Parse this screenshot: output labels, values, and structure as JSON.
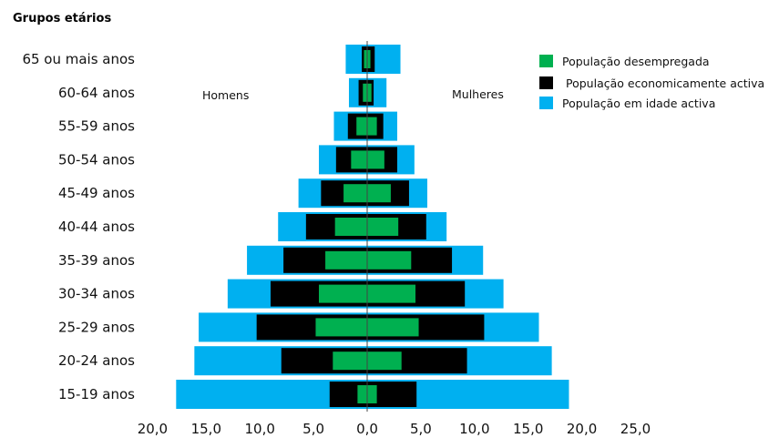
{
  "chart_data": {
    "type": "bar",
    "orientation": "horizontal",
    "subtype": "population-pyramid",
    "y_axis_title": "Grupos etários",
    "left_label": "Homens",
    "right_label": "Mulheres",
    "categories": [
      "65 ou mais anos",
      "60-64 anos",
      "55-59 anos",
      "50-54 anos",
      "45-49 anos",
      "40-44 anos",
      "35-39 anos",
      "30-34 anos",
      "25-29 anos",
      "20-24 anos",
      "15-19 anos"
    ],
    "xlim": [
      -20,
      25
    ],
    "x_ticks": [
      -20,
      -15,
      -10,
      -5,
      0,
      5,
      10,
      15,
      20,
      25
    ],
    "x_tick_labels": [
      "20,0",
      "15,0",
      "10,0",
      "5,0",
      "0,0",
      "5,0",
      "10,0",
      "15,0",
      "20,0",
      "25,0"
    ],
    "grid": false,
    "legend_position": "top-right",
    "series": [
      {
        "name": "População em idade activa",
        "color": "#00b0f0",
        "men": [
          2.0,
          1.7,
          3.1,
          4.5,
          6.4,
          8.3,
          11.2,
          13.0,
          15.7,
          16.1,
          17.8
        ],
        "women": [
          3.1,
          1.8,
          2.8,
          4.4,
          5.6,
          7.4,
          10.8,
          12.7,
          16.0,
          17.2,
          18.8
        ]
      },
      {
        "name": "População economicamente activa",
        "color": "#000000",
        "men": [
          0.5,
          0.8,
          1.8,
          2.9,
          4.3,
          5.7,
          7.8,
          9.0,
          10.3,
          8.0,
          3.5
        ],
        "women": [
          0.7,
          0.6,
          1.5,
          2.8,
          3.9,
          5.5,
          7.9,
          9.1,
          10.9,
          9.3,
          4.6
        ]
      },
      {
        "name": "População desempregada",
        "color": "#00b050",
        "men": [
          0.3,
          0.4,
          1.0,
          1.5,
          2.2,
          3.0,
          3.9,
          4.5,
          4.8,
          3.2,
          0.9
        ],
        "women": [
          0.3,
          0.4,
          0.9,
          1.6,
          2.2,
          2.9,
          4.1,
          4.5,
          4.8,
          3.2,
          0.9
        ]
      }
    ],
    "legend": [
      {
        "label": "População desempregada",
        "color": "#00b050"
      },
      {
        "label": "População economicamente activa",
        "color": "#000000"
      },
      {
        "label": "População em idade activa",
        "color": "#00b0f0"
      }
    ]
  }
}
